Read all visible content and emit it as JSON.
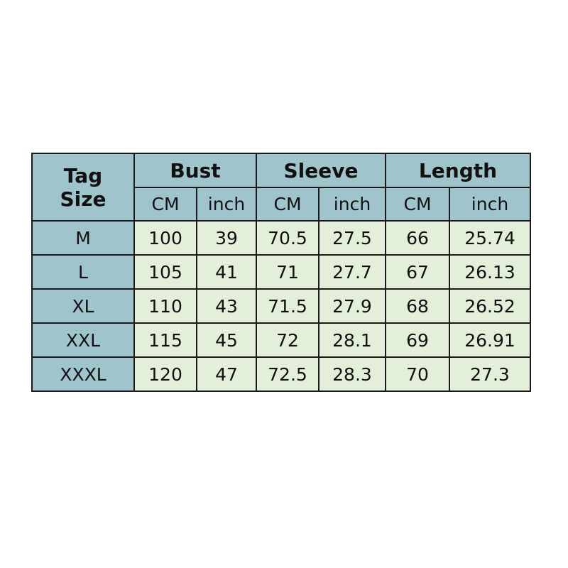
{
  "chart_data": {
    "type": "table",
    "header_groups": [
      "Tag Size",
      "Bust",
      "Sleeve",
      "Length"
    ],
    "tag_size_lines": [
      "Tag",
      "Size"
    ],
    "sub_headers": [
      "CM",
      "inch",
      "CM",
      "inch",
      "CM",
      "inch"
    ],
    "rows": [
      {
        "size": "M",
        "values": [
          "100",
          "39",
          "70.5",
          "27.5",
          "66",
          "25.74"
        ]
      },
      {
        "size": "L",
        "values": [
          "105",
          "41",
          "71",
          "27.7",
          "67",
          "26.13"
        ]
      },
      {
        "size": "XL",
        "values": [
          "110",
          "43",
          "71.5",
          "27.9",
          "68",
          "26.52"
        ]
      },
      {
        "size": "XXL",
        "values": [
          "115",
          "45",
          "72",
          "28.1",
          "69",
          "26.91"
        ]
      },
      {
        "size": "XXXL",
        "values": [
          "120",
          "47",
          "72.5",
          "28.3",
          "70",
          "27.3"
        ]
      }
    ],
    "colors": {
      "header": "#9fc4cc",
      "cell": "#e3efd9",
      "border": "#1a1a1a"
    }
  }
}
